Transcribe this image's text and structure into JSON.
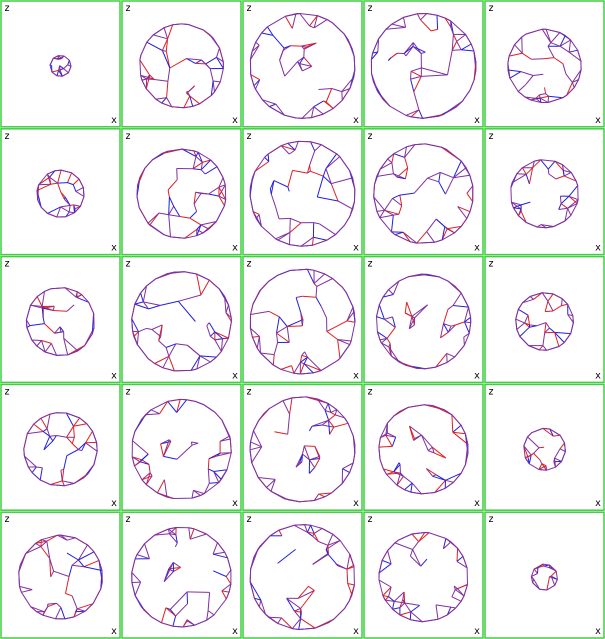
{
  "layout": {
    "rows": 5,
    "cols": 5
  },
  "axis_labels": {
    "top_left": "z",
    "bottom_right": "x"
  },
  "colors": {
    "panel_border": "#3fcf3f",
    "edge_red": "#e02020",
    "edge_blue": "#2020e0",
    "edge_purple": "#8030a0",
    "background": "#ffffff"
  },
  "panels": [
    {
      "size": 0.2,
      "density": 10
    },
    {
      "size": 0.8,
      "density": 26
    },
    {
      "size": 1.0,
      "density": 30
    },
    {
      "size": 1.0,
      "density": 30
    },
    {
      "size": 0.7,
      "density": 24
    },
    {
      "size": 0.45,
      "density": 16
    },
    {
      "size": 0.85,
      "density": 26
    },
    {
      "size": 1.0,
      "density": 30
    },
    {
      "size": 0.95,
      "density": 28
    },
    {
      "size": 0.65,
      "density": 22
    },
    {
      "size": 0.65,
      "density": 20
    },
    {
      "size": 0.95,
      "density": 28
    },
    {
      "size": 1.0,
      "density": 30
    },
    {
      "size": 0.9,
      "density": 28
    },
    {
      "size": 0.55,
      "density": 18
    },
    {
      "size": 0.7,
      "density": 22
    },
    {
      "size": 0.95,
      "density": 28
    },
    {
      "size": 1.0,
      "density": 30
    },
    {
      "size": 0.85,
      "density": 26
    },
    {
      "size": 0.4,
      "density": 14
    },
    {
      "size": 0.8,
      "density": 24
    },
    {
      "size": 0.95,
      "density": 28
    },
    {
      "size": 1.0,
      "density": 30
    },
    {
      "size": 0.85,
      "density": 26
    },
    {
      "size": 0.25,
      "density": 10
    }
  ]
}
